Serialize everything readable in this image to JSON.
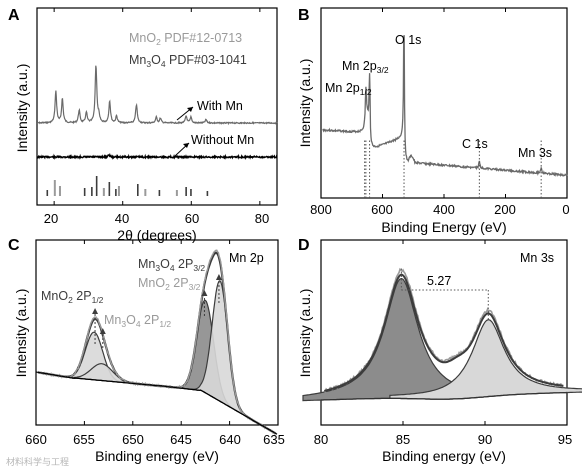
{
  "watermark": "材料科学与工程",
  "colors": {
    "dark": "#3c3c3c",
    "light": "#9a9a9a",
    "mid": "#6a6a6a",
    "fill_dark": "#8c8c8c",
    "fill_light": "#d8d8d8",
    "black": "#000000"
  },
  "chart_data": [
    {
      "panel": "A",
      "type": "line",
      "xlabel": "2θ (degrees)",
      "ylabel": "Intensity (a.u.)",
      "xlim": [
        15,
        85
      ],
      "xticks": [
        "20",
        "40",
        "60",
        "80"
      ],
      "legend": [
        "MnO₂ PDF#12-0713",
        "Mn₃O₄ PDF#03-1041"
      ],
      "legend_placement": "top-right",
      "annotations": [
        "With Mn",
        "Without Mn"
      ],
      "series": [
        {
          "name": "With Mn",
          "peaks": [
            [
              20.5,
              0.55
            ],
            [
              22.4,
              0.42
            ],
            [
              27.3,
              0.22
            ],
            [
              29.4,
              0.18
            ],
            [
              32.2,
              1.0
            ],
            [
              33.0,
              0.12
            ],
            [
              36.2,
              0.38
            ],
            [
              38.2,
              0.12
            ],
            [
              44.0,
              0.32
            ],
            [
              49.8,
              0.1
            ],
            [
              51.0,
              0.08
            ],
            [
              58.5,
              0.12
            ],
            [
              59.9,
              0.1
            ],
            [
              64.3,
              0.06
            ]
          ]
        },
        {
          "name": "Without Mn",
          "peaks": [
            [
              36.0,
              0.06
            ]
          ]
        }
      ],
      "reference_lines": {
        "MnO₂": [
          20.2,
          21.7,
          34.5,
          38.9,
          46.6,
          55.8
        ],
        "Mn₃O₄": [
          18.0,
          28.9,
          31.0,
          32.4,
          36.1,
          38.0,
          44.4,
          50.7,
          58.5,
          59.9,
          64.7
        ]
      }
    },
    {
      "panel": "B",
      "type": "line",
      "xlabel": "Binding Energy (eV)",
      "ylabel": "Intensity (a.u.)",
      "xlim": [
        800,
        0
      ],
      "xticks": [
        "800",
        "600",
        "400",
        "200",
        "0"
      ],
      "annotations": [
        "O 1s",
        "Mn 2p3/2",
        "Mn 2p1/2",
        "C 1s",
        "Mn 3s"
      ],
      "peaks": [
        [
          654,
          0.25
        ],
        [
          642,
          0.38
        ],
        [
          530,
          1.0
        ],
        [
          285,
          0.05
        ],
        [
          84,
          0.04
        ]
      ],
      "marker_positions": [
        654,
        642,
        530,
        285,
        84
      ]
    },
    {
      "panel": "C",
      "type": "line",
      "xlabel": "Binding energy (eV)",
      "ylabel": "Intensity (a.u.)",
      "xlim": [
        660,
        635
      ],
      "xticks": [
        "660",
        "655",
        "650",
        "645",
        "640",
        "635"
      ],
      "title": "Mn 2p",
      "annotations": [
        "Mn3O4 2P3/2",
        "MnO2 2P3/2",
        "MnO2 2P1/2",
        "Mn3O4 2P1/2"
      ],
      "components": [
        {
          "name": "MnO₂ 2P1/2",
          "center": 654.0,
          "height": 0.34
        },
        {
          "name": "Mn₃O₄ 2P1/2",
          "center": 653.2,
          "height": 0.12
        },
        {
          "name": "MnO₂ 2P3/2",
          "center": 642.5,
          "height": 0.66
        },
        {
          "name": "Mn₃O₄ 2P3/2",
          "center": 641.0,
          "height": 0.86
        }
      ]
    },
    {
      "panel": "D",
      "type": "line",
      "xlabel": "Binding energy (eV)",
      "ylabel": "Intensity (a.u.)",
      "xlim": [
        80,
        95
      ],
      "xticks": [
        "80",
        "85",
        "90",
        "95"
      ],
      "title": "Mn 3s",
      "peak_separation": "5.27",
      "components": [
        {
          "center": 84.9,
          "height": 1.0
        },
        {
          "center": 90.2,
          "height": 0.64
        }
      ]
    }
  ],
  "labels": {
    "A": {
      "panel": "A",
      "ylabel": "Intensity (a.u.)",
      "xlabel": "2θ (degrees)",
      "legend1_base": "MnO",
      "legend1_sub": "2",
      "legend1_rest": "  PDF#12-0713",
      "legend2_base": "Mn",
      "legend2_sub1": "3",
      "legend2_mid": "O",
      "legend2_sub2": "4",
      "legend2_rest": " PDF#03-1041",
      "with": "With Mn",
      "without": "Without Mn",
      "ticks": [
        "20",
        "40",
        "60",
        "80"
      ]
    },
    "B": {
      "panel": "B",
      "ylabel": "Intensity (a.u.)",
      "xlabel": "Binding Energy (eV)",
      "o1s": "O 1s",
      "mn23_base": "Mn 2p",
      "mn23_sub": "3/2",
      "mn21_base": "Mn 2p",
      "mn21_sub": "1/2",
      "c1s": "C 1s",
      "mn3s": "Mn 3s",
      "ticks": [
        "800",
        "600",
        "400",
        "200",
        "0"
      ]
    },
    "C": {
      "panel": "C",
      "ylabel": "Intensity (a.u.)",
      "xlabel": "Binding energy (eV)",
      "title": "Mn 2p",
      "l1_base": "Mn",
      "l1_s1": "3",
      "l1_mid": "O",
      "l1_s2": "4",
      "l1_rest": " 2P",
      "l1_s3": "3/2",
      "l2_base": "MnO",
      "l2_s1": "2",
      "l2_rest": " 2P",
      "l2_s2": "3/2",
      "l3_base": "MnO",
      "l3_s1": "2",
      "l3_rest": " 2P",
      "l3_s2": "1/2",
      "l4_base": "Mn",
      "l4_s1": "3",
      "l4_mid": "O",
      "l4_s2": "4",
      "l4_rest": " 2P",
      "l4_s3": "1/2",
      "ticks": [
        "660",
        "655",
        "650",
        "645",
        "640",
        "635"
      ]
    },
    "D": {
      "panel": "D",
      "ylabel": "Intensity (a.u.)",
      "xlabel": "Binding energy (eV)",
      "title": "Mn 3s",
      "sep": "5.27",
      "ticks": [
        "80",
        "85",
        "90",
        "95"
      ]
    }
  }
}
